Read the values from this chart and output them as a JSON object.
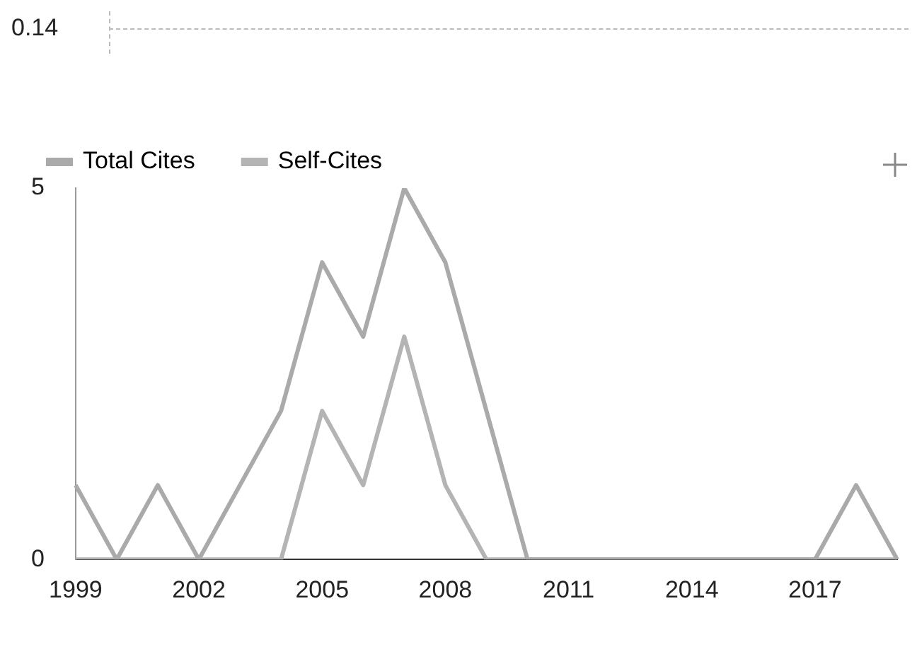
{
  "chart_data": {
    "type": "line",
    "categories": [
      "1999",
      null,
      null,
      "2002",
      null,
      null,
      "2005",
      null,
      null,
      "2008",
      null,
      null,
      "2011",
      null,
      null,
      "2014",
      null,
      null,
      "2017",
      null,
      null
    ],
    "series": [
      {
        "name": "Total Cites",
        "color": "#aaaaaa",
        "values": [
          1,
          0,
          1,
          0,
          1,
          2,
          4,
          3,
          5,
          4,
          2,
          0,
          0,
          0,
          0,
          0,
          0,
          0,
          0,
          1,
          0
        ]
      },
      {
        "name": "Self-Cites",
        "color": "#b4b4b4",
        "values": [
          0,
          0,
          0,
          0,
          0,
          0,
          2,
          1,
          3,
          1,
          0,
          0,
          0,
          0,
          0,
          0,
          0,
          0,
          0,
          0,
          0
        ]
      }
    ],
    "ylim": [
      0,
      5
    ],
    "yticks": [
      0,
      5
    ],
    "grid": false,
    "legend": "top left",
    "marker": "none",
    "line_style": "solid",
    "annotations": [
      "0.14"
    ]
  }
}
